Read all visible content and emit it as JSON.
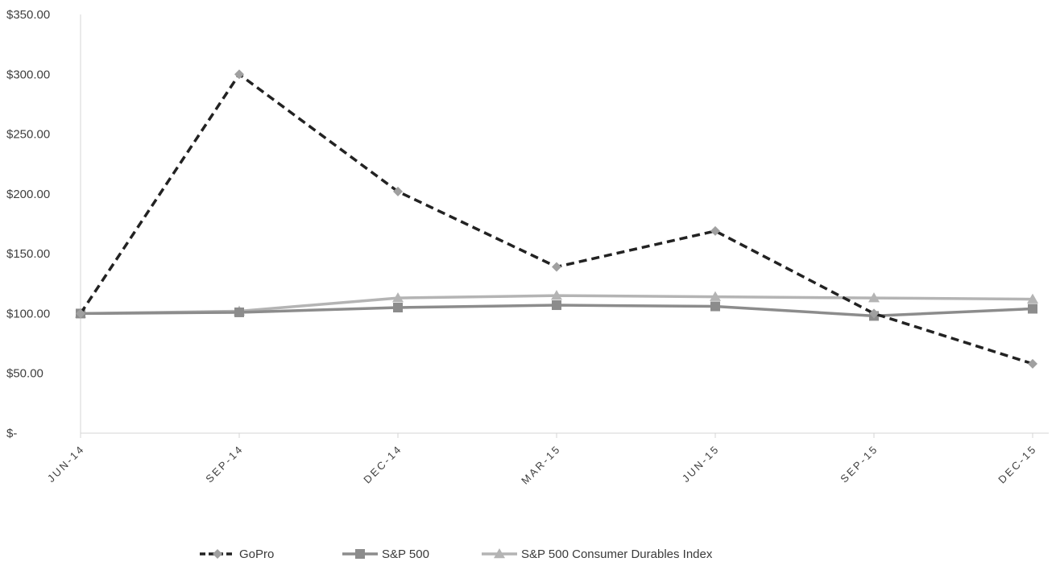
{
  "chart_data": {
    "type": "line",
    "title": "",
    "xlabel": "",
    "ylabel": "",
    "categories": [
      "JUN-14",
      "SEP-14",
      "DEC-14",
      "MAR-15",
      "JUN-15",
      "SEP-15",
      "DEC-15"
    ],
    "ylim": [
      0,
      350
    ],
    "y_ticks": [
      0,
      50,
      100,
      150,
      200,
      250,
      300,
      350
    ],
    "y_tick_labels": [
      "$-",
      "$50.00",
      "$100.00",
      "$150.00",
      "$200.00",
      "$250.00",
      "$300.00",
      "$350.00"
    ],
    "grid": false,
    "legend_position": "bottom",
    "series": [
      {
        "name": "GoPro",
        "values": [
          100,
          300,
          202,
          139,
          169,
          100,
          58
        ],
        "color": "#222222",
        "marker": "diamond",
        "marker_color": "#a0a0a0",
        "line_style": "dashed"
      },
      {
        "name": "S&P 500",
        "values": [
          100,
          101,
          105,
          107,
          106,
          98,
          104
        ],
        "color": "#8c8c8c",
        "marker": "square",
        "marker_color": "#8c8c8c",
        "line_style": "solid"
      },
      {
        "name": "S&P 500 Consumer Durables Index",
        "values": [
          100,
          102,
          113,
          115,
          114,
          113,
          112
        ],
        "color": "#b4b4b4",
        "marker": "triangle",
        "marker_color": "#b4b4b4",
        "line_style": "solid"
      }
    ]
  }
}
